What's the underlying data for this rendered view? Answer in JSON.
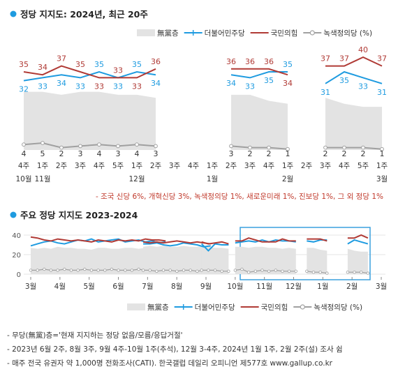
{
  "chart_data": [
    {
      "type": "line",
      "title": "정당 지지도: 2024년, 최근 20주",
      "legend": {
        "placement": "top-right",
        "items": [
          "無黨층",
          "더불어민주당",
          "국민의힘",
          "녹색정의당 (%)"
        ]
      },
      "x_labels": [
        "4주",
        "1주",
        "2주",
        "3주",
        "4주",
        "5주",
        "1주",
        "2주",
        "3주",
        "4주",
        "1주",
        "2주",
        "3주",
        "4주",
        "1주",
        "2주",
        "3주",
        "4주",
        "5주",
        "1주"
      ],
      "month_labels": [
        {
          "at": 0,
          "text": "10월"
        },
        {
          "at": 1,
          "text": "11월"
        },
        {
          "at": 6,
          "text": "12월"
        },
        {
          "at": 10,
          "text": "1월"
        },
        {
          "at": 14,
          "text": "2월"
        },
        {
          "at": 19,
          "text": "3월"
        }
      ],
      "series": [
        {
          "name": "더불어민주당",
          "color": "#1e9be0",
          "values": [
            32,
            33,
            34,
            33,
            35,
            33,
            35,
            34,
            null,
            null,
            null,
            34,
            33,
            35,
            35,
            null,
            31,
            35,
            33,
            31
          ]
        },
        {
          "name": "국민의힘",
          "color": "#b03a35",
          "values": [
            35,
            34,
            37,
            35,
            33,
            33,
            33,
            36,
            null,
            null,
            null,
            36,
            36,
            36,
            34,
            null,
            37,
            37,
            40,
            37
          ]
        },
        {
          "name": "녹색정의당",
          "color": "#a0a0a0",
          "values": [
            4,
            5,
            2,
            3,
            4,
            3,
            4,
            3,
            null,
            null,
            null,
            3,
            2,
            2,
            1,
            null,
            2,
            2,
            2,
            1
          ]
        },
        {
          "name": "無黨층",
          "color": "#e3e3e3",
          "values": [
            28,
            28,
            27,
            28,
            28,
            27,
            27,
            26,
            null,
            null,
            null,
            27,
            27,
            25,
            24,
            null,
            26,
            24,
            23,
            23
          ]
        }
      ],
      "note": "- 조국 신당 6%, 개혁신당 3%, 녹색정의당 1%, 새로운미래 1%, 진보당 1%, 그 외 정당 1%"
    },
    {
      "type": "line",
      "title": "주요 정당 지지도 2023-2024",
      "legend": {
        "placement": "bottom-right",
        "items": [
          "無黨층",
          "더불어민주당",
          "국민의힘",
          "녹색정의당 (%)"
        ]
      },
      "y_ticks": [
        0,
        20,
        40
      ],
      "ylim": [
        0,
        45
      ],
      "month_labels": [
        "3월",
        "4월",
        "5월",
        "6월",
        "7월",
        "8월",
        "9월",
        "10월",
        "11월",
        "12월",
        "1월",
        "2월",
        "3월"
      ],
      "segments": [
        {
          "start": 0.0,
          "dem": [
            29,
            31,
            33,
            34,
            32,
            31,
            33,
            35,
            34,
            36,
            33,
            34,
            35,
            36,
            33,
            34,
            35,
            33,
            34,
            32,
            33
          ],
          "ppp": [
            38,
            37,
            35,
            34,
            36,
            35,
            34,
            35,
            34,
            33,
            35,
            34,
            33,
            35,
            34,
            35,
            34,
            36,
            35,
            35,
            34
          ],
          "jus": [
            4,
            4,
            5,
            4,
            4,
            5,
            4,
            4,
            5,
            4,
            4,
            4,
            5,
            4,
            4,
            4,
            5,
            4,
            4,
            4,
            3
          ],
          "non": [
            27,
            26,
            27,
            26,
            28,
            27,
            27,
            26,
            26,
            25,
            27,
            27,
            26,
            26,
            27,
            27,
            26,
            27,
            26,
            27,
            27
          ]
        },
        {
          "start": 3.85,
          "dem": [
            31,
            31,
            32,
            30,
            29,
            30,
            32,
            31,
            30,
            28,
            29
          ],
          "ppp": [
            33,
            32,
            33,
            32,
            33,
            34,
            33,
            32,
            33,
            32,
            31
          ],
          "jus": [
            4,
            4,
            3,
            4,
            4,
            3,
            4,
            4,
            3,
            4,
            3
          ],
          "non": [
            28,
            29,
            28,
            29,
            28,
            28,
            29,
            28,
            28,
            29,
            28
          ]
        },
        {
          "start": 5.85,
          "dem": [
            31,
            24,
            31,
            30,
            30
          ],
          "ppp": [
            33,
            31,
            32,
            33,
            31
          ],
          "jus": [
            4,
            4,
            4,
            3,
            3
          ],
          "non": [
            26,
            28,
            27,
            27,
            26
          ]
        },
        {
          "start": 7.0,
          "dem": [
            32,
            33,
            34,
            33,
            35,
            33,
            35,
            34,
            34,
            33
          ],
          "ppp": [
            34,
            34,
            37,
            35,
            33,
            33,
            33,
            36,
            34,
            34
          ],
          "jus": [
            4,
            5,
            2,
            3,
            4,
            3,
            4,
            3,
            3,
            3
          ],
          "non": [
            28,
            28,
            27,
            28,
            28,
            27,
            27,
            26,
            27,
            26
          ]
        },
        {
          "start": 9.45,
          "dem": [
            34,
            33,
            35,
            35
          ],
          "ppp": [
            36,
            36,
            36,
            34
          ],
          "jus": [
            3,
            2,
            2,
            1
          ],
          "non": [
            27,
            27,
            25,
            24
          ]
        },
        {
          "start": 10.85,
          "dem": [
            31,
            35,
            33,
            31
          ],
          "ppp": [
            37,
            37,
            40,
            37
          ],
          "jus": [
            2,
            2,
            2,
            1
          ],
          "non": [
            26,
            24,
            23,
            23
          ]
        }
      ]
    }
  ],
  "footnotes": [
    "- 무당(無黨)층='현재 지지하는 정당 없음/모름/응답거절'",
    "- 2023년 6월 2주, 8월 3주, 9월 4주-10월 1주(추석), 12월 3-4주, 2024년 1월 1주, 2월 2주(설) 조사 쉼",
    "- 매주 전국 유권자 약 1,000명 전화조사(CATI). 한국갤럽 데일리 오피니언 제577호 www.gallup.co.kr"
  ],
  "colors": {
    "dem": "#1e9be0",
    "ppp": "#b03a35",
    "jus": "#a0a0a0",
    "non": "#e3e3e3",
    "bullet": "#1e9be0",
    "note": "#c0392b"
  }
}
